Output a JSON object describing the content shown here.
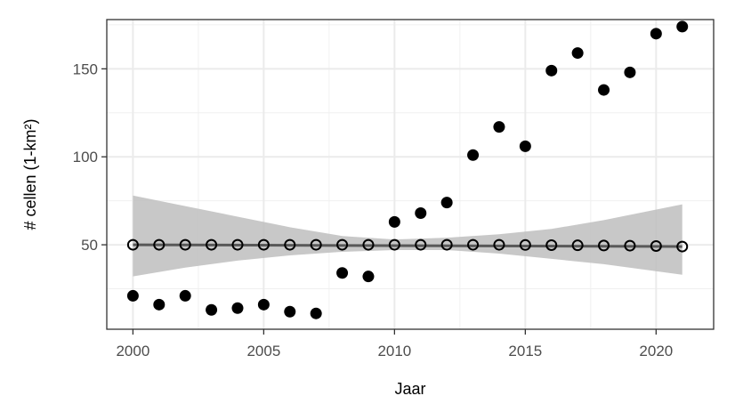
{
  "chart_data": {
    "type": "scatter",
    "xlabel": "Jaar",
    "ylabel": "# cellen (1-km²)",
    "xlim": [
      1999,
      2022.2
    ],
    "ylim": [
      2,
      178
    ],
    "x_ticks": [
      2000,
      2005,
      2010,
      2015,
      2020
    ],
    "y_ticks": [
      50,
      100,
      150
    ],
    "grid": true,
    "series": [
      {
        "style": "filled",
        "color": "#000000",
        "x": [
          2000,
          2001,
          2002,
          2003,
          2004,
          2005,
          2006,
          2007,
          2008,
          2009,
          2010,
          2011,
          2012,
          2013,
          2014,
          2015,
          2016,
          2017,
          2018,
          2019,
          2020,
          2021
        ],
        "y": [
          21,
          16,
          21,
          13,
          14,
          16,
          12,
          11,
          34,
          32,
          63,
          68,
          74,
          101,
          117,
          106,
          149,
          159,
          138,
          148,
          170,
          174
        ]
      },
      {
        "style": "open",
        "color": "#000000",
        "x": [
          2000,
          2001,
          2002,
          2003,
          2004,
          2005,
          2006,
          2007,
          2008,
          2009,
          2010,
          2011,
          2012,
          2013,
          2014,
          2015,
          2016,
          2017,
          2018,
          2019,
          2020,
          2021
        ],
        "y": [
          50,
          50,
          50,
          50,
          50,
          50,
          50,
          50,
          50,
          50,
          50,
          50,
          50,
          50,
          50,
          49.9,
          49.8,
          49.7,
          49.6,
          49.5,
          49.3,
          49
        ]
      }
    ],
    "trend": {
      "x": [
        2000,
        2021
      ],
      "y": [
        50,
        49
      ],
      "color": "#4d4d4d",
      "ci_upper": [
        [
          2000,
          78
        ],
        [
          2002,
          72
        ],
        [
          2004,
          66
        ],
        [
          2006,
          60
        ],
        [
          2008,
          55
        ],
        [
          2010,
          53
        ],
        [
          2012,
          54
        ],
        [
          2014,
          56
        ],
        [
          2016,
          59
        ],
        [
          2018,
          64
        ],
        [
          2021,
          73
        ]
      ],
      "ci_lower": [
        [
          2000,
          32
        ],
        [
          2002,
          37
        ],
        [
          2004,
          41
        ],
        [
          2006,
          44
        ],
        [
          2008,
          46
        ],
        [
          2010,
          47
        ],
        [
          2012,
          47
        ],
        [
          2014,
          45
        ],
        [
          2016,
          42
        ],
        [
          2018,
          39
        ],
        [
          2021,
          33
        ]
      ],
      "ci_color": "#bebebe"
    }
  }
}
